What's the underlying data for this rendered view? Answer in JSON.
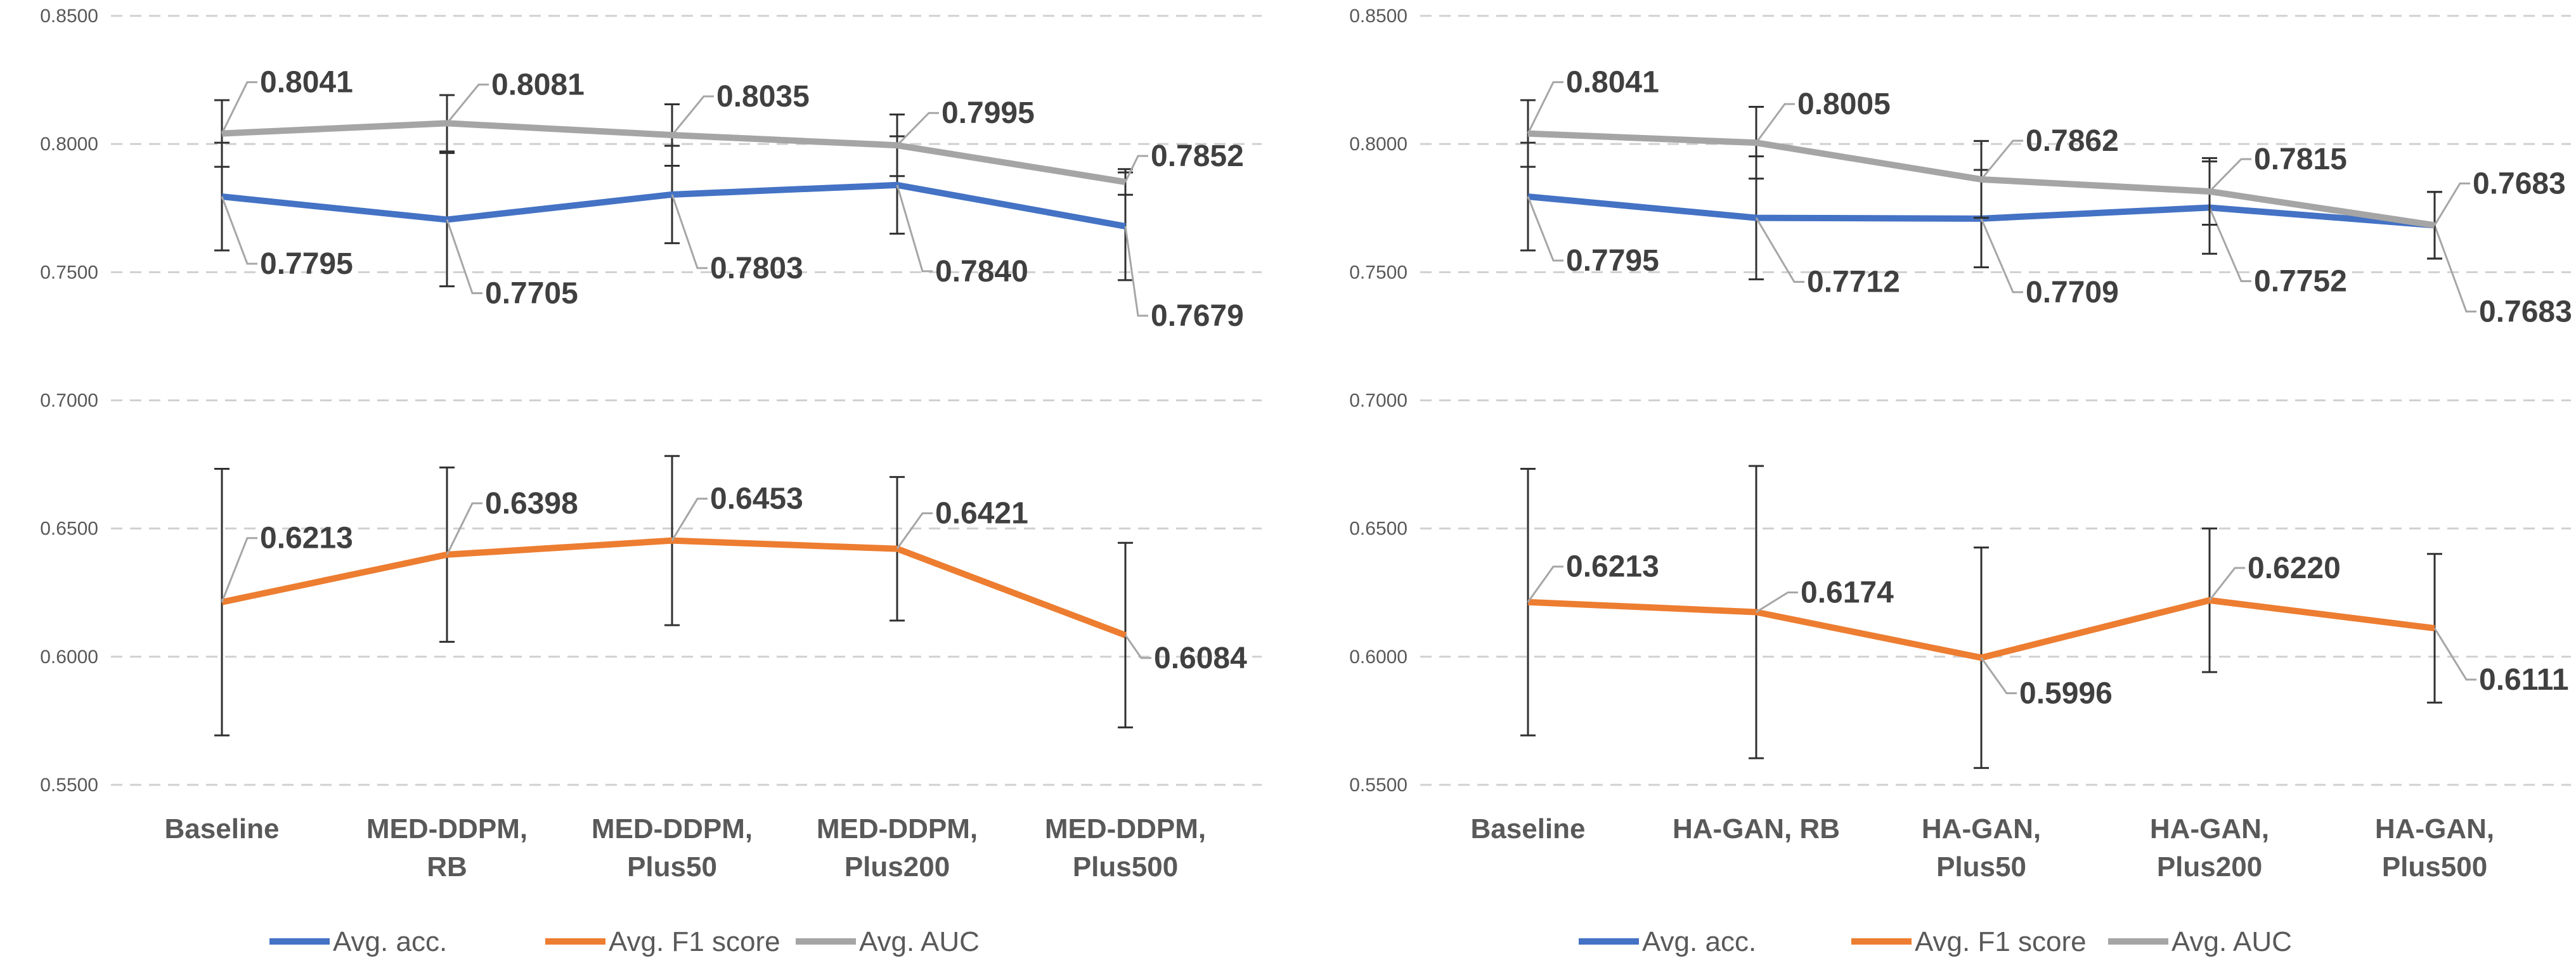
{
  "chart_data": [
    {
      "type": "line",
      "title": "",
      "xlabel": "",
      "ylabel": "",
      "ylim": [
        0.55,
        0.85
      ],
      "yticks": [
        "0.5500",
        "0.6000",
        "0.6500",
        "0.7000",
        "0.7500",
        "0.8000",
        "0.8500"
      ],
      "grid": true,
      "legend_position": "bottom",
      "categories": [
        [
          "Baseline"
        ],
        [
          "MED-DDPM,",
          "RB"
        ],
        [
          "MED-DDPM,",
          "Plus50"
        ],
        [
          "MED-DDPM,",
          "Plus200"
        ],
        [
          "MED-DDPM,",
          "Plus500"
        ]
      ],
      "series": [
        {
          "name": "Avg. acc.",
          "color": "#4472C4",
          "values": [
            0.7795,
            0.7705,
            0.7803,
            0.784,
            0.7679
          ],
          "labels": [
            "0.7795",
            "0.7705",
            "0.7803",
            "0.7840",
            "0.7679"
          ],
          "errors": [
            0.021,
            0.026,
            0.019,
            0.019,
            0.021
          ]
        },
        {
          "name": "Avg. F1 score",
          "color": "#ED7D31",
          "values": [
            0.6213,
            0.6398,
            0.6453,
            0.6421,
            0.6084
          ],
          "labels": [
            "0.6213",
            "0.6398",
            "0.6453",
            "0.6421",
            "0.6084"
          ],
          "errors": [
            0.052,
            0.034,
            0.033,
            0.028,
            0.036
          ]
        },
        {
          "name": "Avg. AUC",
          "color": "#A5A5A5",
          "values": [
            0.8041,
            0.8081,
            0.8035,
            0.7995,
            0.7852
          ],
          "labels": [
            "0.8041",
            "0.8081",
            "0.8035",
            "0.7995",
            "0.7852"
          ],
          "errors": [
            0.013,
            0.011,
            0.012,
            0.012,
            0.005
          ]
        }
      ]
    },
    {
      "type": "line",
      "title": "",
      "xlabel": "",
      "ylabel": "",
      "ylim": [
        0.55,
        0.85
      ],
      "yticks": [
        "0.5500",
        "0.6000",
        "0.6500",
        "0.7000",
        "0.7500",
        "0.8000",
        "0.8500"
      ],
      "grid": true,
      "legend_position": "bottom",
      "categories": [
        [
          "Baseline"
        ],
        [
          "HA-GAN, RB"
        ],
        [
          "HA-GAN,",
          "Plus50"
        ],
        [
          "HA-GAN,",
          "Plus200"
        ],
        [
          "HA-GAN,",
          "Plus500"
        ]
      ],
      "series": [
        {
          "name": "Avg. acc.",
          "color": "#4472C4",
          "values": [
            0.7795,
            0.7712,
            0.7709,
            0.7752,
            0.7683
          ],
          "labels": [
            "0.7795",
            "0.7712",
            "0.7709",
            "0.7752",
            "0.7683"
          ],
          "errors": [
            0.021,
            0.024,
            0.019,
            0.018,
            0.013
          ]
        },
        {
          "name": "Avg. F1 score",
          "color": "#ED7D31",
          "values": [
            0.6213,
            0.6174,
            0.5996,
            0.622,
            0.6111
          ],
          "labels": [
            "0.6213",
            "0.6174",
            "0.5996",
            "0.6220",
            "0.6111"
          ],
          "errors": [
            0.052,
            0.057,
            0.043,
            0.028,
            0.029
          ]
        },
        {
          "name": "Avg. AUC",
          "color": "#A5A5A5",
          "values": [
            0.8041,
            0.8005,
            0.7862,
            0.7815,
            0.7683
          ],
          "labels": [
            "0.8041",
            "0.8005",
            "0.7862",
            "0.7815",
            "0.7683"
          ],
          "errors": [
            0.013,
            0.014,
            0.015,
            0.013,
            0.013
          ]
        }
      ]
    }
  ]
}
